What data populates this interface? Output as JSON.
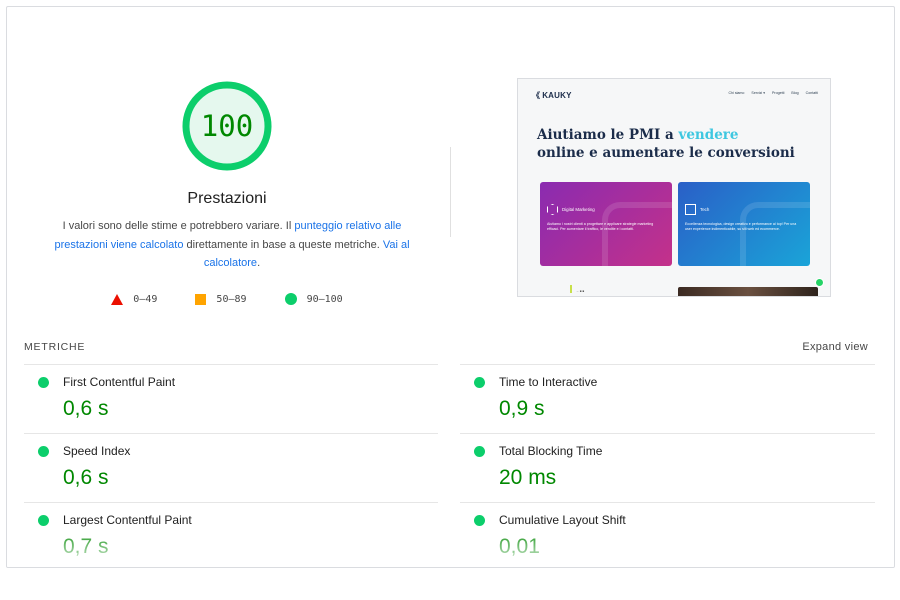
{
  "score": {
    "value": "100",
    "fraction": 1.0,
    "ring_color": "#0cce6b",
    "fill_color": "#e5f8ee",
    "text_color": "#008800",
    "title": "Prestazioni"
  },
  "description": {
    "part1": "I valori sono delle stime e potrebbero variare. Il ",
    "link1": "punteggio relativo alle prestazioni viene calcolato",
    "part2": " direttamente in base a queste metriche. ",
    "link2": "Vai al calcolatore",
    "part3": "."
  },
  "legend": [
    {
      "icon": "triangle-icon",
      "range": "0–49",
      "color": "#eb0f00"
    },
    {
      "icon": "square-icon",
      "range": "50–89",
      "color": "#ffa400"
    },
    {
      "icon": "circle-icon",
      "range": "90–100",
      "color": "#0cce6b"
    }
  ],
  "screenshot": {
    "logo": "KAUKY",
    "nav": [
      "Chi siamo",
      "Servizi ▾",
      "Progetti",
      "Blog",
      "Contatti"
    ],
    "headline_part1": "Aiutiamo le PMI a ",
    "headline_highlight": "vendere",
    "headline_line2": "online e aumentare le conversioni",
    "cards": [
      {
        "label": "Digital Marketing",
        "text": "Aiutiamo i nostri clienti a progettare e applicare strategie marketing efficaci. Per aumentare il traffico, le vendite e i contatti."
      },
      {
        "label": "Tech",
        "text": "Eccellenza tecnologica, design creativo e performance al top! Per una user experience indimenticabile, su siti web ed ecommerce."
      }
    ],
    "bottom_text": "→ ■ ■"
  },
  "metrics": {
    "section_title": "METRICHE",
    "expand_label": "Expand view",
    "items": [
      {
        "name": "First Contentful Paint",
        "value": "0,6 s"
      },
      {
        "name": "Time to Interactive",
        "value": "0,9 s"
      },
      {
        "name": "Speed Index",
        "value": "0,6 s"
      },
      {
        "name": "Total Blocking Time",
        "value": "20 ms"
      },
      {
        "name": "Largest Contentful Paint",
        "value": "0,7 s"
      },
      {
        "name": "Cumulative Layout Shift",
        "value": "0,01"
      }
    ]
  }
}
